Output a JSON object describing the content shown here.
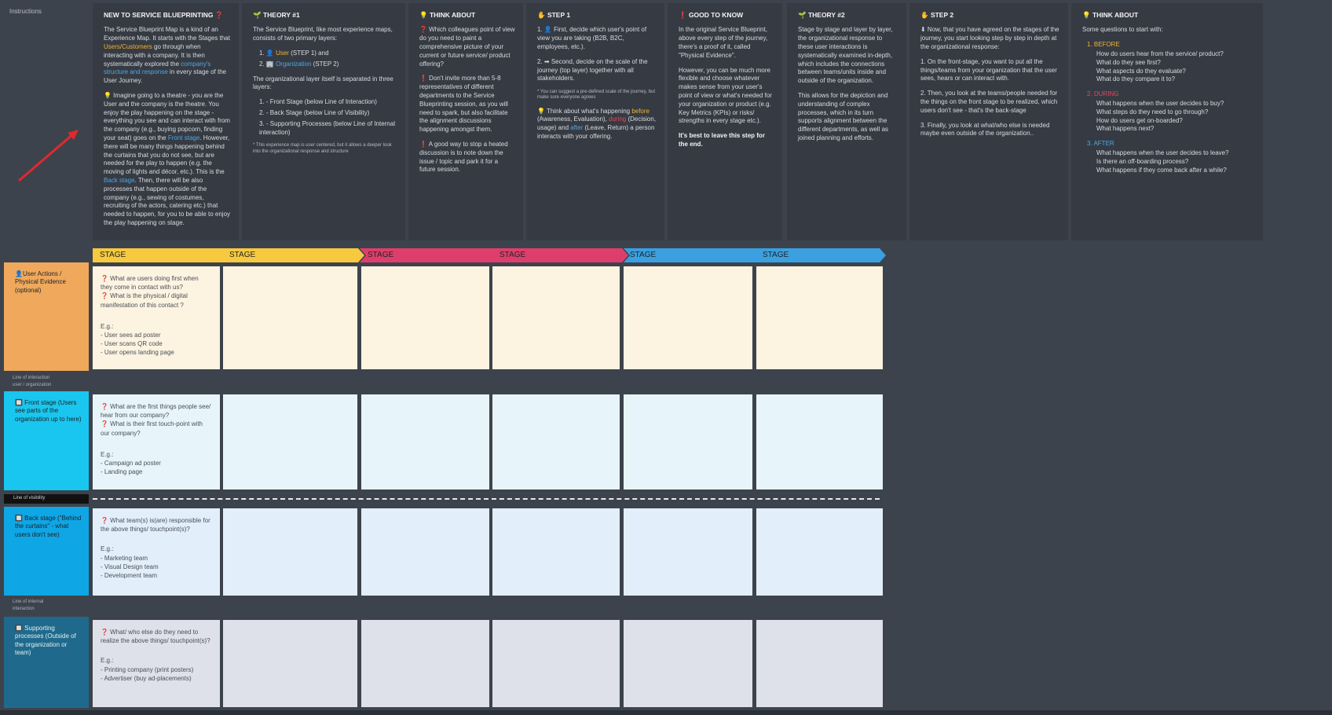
{
  "instructions_label": "Instructions",
  "cards": {
    "new": {
      "title": "NEW TO SERVICE BLUEPRINTING ❓",
      "p1a": "The Service Blueprint Map is a kind of an Experience Map. It starts with the Stages that ",
      "p1b": "Users/Customers",
      "p1c": " go through when interacting with a company. It is then systematically explored the ",
      "p1d": "company's structure and response",
      "p1e": " in every stage of the User Journey.",
      "p2a": "💡 Imagine going to a theatre - you are the User and the company is the theatre. You enjoy the play happening on the stage - everything you see and can interact with from the company (e.g., buying popcorn, finding your seat) goes on the ",
      "p2b": "Front stage",
      "p2c": ". However, there will be many things happening behind the curtains that you do not see, but are needed for the play to happen (e.g. the moving of lights and décor, etc.). This is the ",
      "p2d": "Back stage",
      "p2e": ". Then, there will be also processes that happen outside of the company (e.g., sewing of costumes, recruiting of the actors, catering etc.) that needed to happen, for you to be able to enjoy the play happening on stage."
    },
    "theory1": {
      "title": "🌱 THEORY #1",
      "p1": "The Service Blueprint, like most experience maps, consists of two primary layers:",
      "b1a": "1. 👤 ",
      "b1b": "User",
      "b1c": " (STEP 1) and",
      "b2a": "2. 🏢 ",
      "b2b": "Organization",
      "b2c": " (STEP 2)",
      "p2": "The organizational layer itself is separated in three layers:",
      "l1": "1. - Front Stage (below Line of Interaction)",
      "l2": "2. - Back Stage (below Line of Visibility)",
      "l3": "3. - Supporting Processes (below Line of Internal interaction)",
      "tiny": "* This experience map is user centered, but it allows a deeper look into the organizational response and structure"
    },
    "think1": {
      "title": "💡 THINK ABOUT",
      "p1": "❓ Which colleagues point of view do you need to paint a comprehensive picture of your current or future service/ product offering?",
      "p2": "❗ Don't invite more than 5-8 representatives of different departments to the Service Blueprinting session, as you will need to spark, but also facilitate the alignment discussions happening amongst them.",
      "p3": "❗ A good way to stop a heated discussion is to note down the issue / topic and park it for a future session."
    },
    "step1": {
      "title": "✋ STEP 1",
      "p1": "1. 👤 First, decide which user's point of view you are taking (B2B, B2C, employees, etc.).",
      "p2": "2. ➡ Second, decide on the scale of the journey (top layer) together with all stakeholders.",
      "tiny": "* You can suggest a pre-defined scale of the journey, but make sure everyone agrees",
      "p3a": "💡 Think about what's happening ",
      "p3b": "before",
      "p3c": " (Awareness, Evaluation), ",
      "p3d": "during",
      "p3e": " (Decision, usage) and ",
      "p3f": "after",
      "p3g": " (Leave, Return) a person interacts with your offering."
    },
    "good": {
      "title": "❗ GOOD TO KNOW",
      "p1": "In the original Service Blueprint, above every step of the journey, there's a proof of it, called \"Physical Evidence\".",
      "p2": "However, you can be much more flexible and choose whatever makes sense from your user's point of view or what's needed for your organization or product (e.g. Key Metrics (KPIs) or risks/ strengths in every stage etc.).",
      "p3": "It's best to leave this step for the end."
    },
    "theory2": {
      "title": "🌱 THEORY #2",
      "p1": "Stage by stage and layer by layer, the organizational response to these user interactions is systematically examined in-depth, which includes the connections between teams/units inside and outside of the organization.",
      "p2": "This allows for the depiction and understanding of complex processes, which in its turn supports alignment between the different departments, as well as joined planning and efforts."
    },
    "step2": {
      "title": "✋ STEP 2",
      "p1": "⬇ Now, that you have agreed on the stages of the journey, you start looking step by step in depth at the organizational response:",
      "p2": "1. On the front-stage, you want to put all the things/teams from your organization that the user sees, hears or can interact with.",
      "p3": "2. Then, you look at the teams/people needed for the things on the front stage to be realized, which users don't see - that's the back-stage",
      "p4": "3. Finally, you look at what/who else is needed maybe even outside of the organization.."
    },
    "think2": {
      "title": "💡 THINK ABOUT",
      "intro": "Some questions to start with:",
      "before_label": "1. BEFORE",
      "before_q": "How do users hear from the service/ product?\nWhat do they see first?\nWhat aspects do they evaluate?\nWhat do they compare it to?",
      "during_label": "2. DURING",
      "during_q": "What happens when the user decides to buy?\nWhat steps do they need to go through?\nHow do users get on-boarded?\nWhat happens next?",
      "after_label": "3. AFTER",
      "after_q": "What happens when the user decides to leave?\nIs there an off-boarding process?\nWhat happens if they come back after a while?"
    }
  },
  "stages": [
    "STAGE",
    "STAGE",
    "STAGE",
    "STAGE",
    "STAGE",
    "STAGE"
  ],
  "rows": {
    "user": {
      "label": "👤User Actions / Physical Evidence (optional)",
      "q1": "❓ What are users doing first when they come in contact with us?",
      "q2": "❓ What is the physical / digital manifestation of this contact ?",
      "eg": "E.g.:",
      "e1": "- User sees ad poster",
      "e2": "- User scans QR code",
      "e3": "- User opens landing page"
    },
    "line_interaction": "Line of interaction\nuser / organization",
    "front": {
      "label": "🔲 Front stage (Users see parts of the organization up to here)",
      "q1": "❓ What are the first things people see/ hear from our company?",
      "q2": "❓ What is their first touch-point with our company?",
      "eg": "E.g.:",
      "e1": "- Campaign ad poster",
      "e2": "- Landing page"
    },
    "line_visibility": "Line of visibility",
    "back": {
      "label": "🔲 Back stage (\"Behind the curtains\" - what users don't see)",
      "q1": "❓ What team(s) is(are) responsible for the above things/ touchpoint(s)?",
      "eg": "E.g.:",
      "e1": "- Marketing team",
      "e2": "- Visual Design team",
      "e3": "- Development team"
    },
    "line_internal": "Line of internal\ninteraction",
    "support": {
      "label": "🔲 Supporting processes (Outside of the organization or team)",
      "q1": "❓ What/ who else do they need to realize the above things/ touchpoint(s)?",
      "eg": "E.g.:",
      "e1": "- Printing company (print posters)",
      "e2": "- Advertiser (buy ad-placements)"
    }
  },
  "colors": {
    "bg": "#3d434c",
    "yellow": "#f6c93f",
    "pink": "#de3e6b",
    "blue": "#3aa0df",
    "user_row": "#f0a85c",
    "front_row": "#19c6ef",
    "back_row": "#0fa6e6",
    "support_row": "#1f6a8c"
  }
}
